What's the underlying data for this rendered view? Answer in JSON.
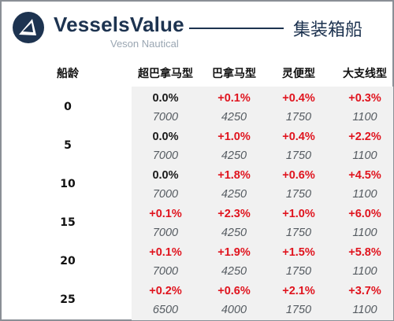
{
  "header": {
    "brand": "VesselsValue",
    "brand_sub": "Veson Nautical",
    "title": "集装箱船"
  },
  "table": {
    "age_header": "船龄",
    "columns": [
      "超巴拿马型",
      "巴拿马型",
      "灵便型",
      "大支线型"
    ],
    "rows": [
      {
        "age": "0",
        "changes": [
          "0.0%",
          "+0.1%",
          "+0.4%",
          "+0.3%"
        ],
        "values": [
          "7000",
          "4250",
          "1750",
          "1100"
        ]
      },
      {
        "age": "5",
        "changes": [
          "0.0%",
          "+1.0%",
          "+0.4%",
          "+2.2%"
        ],
        "values": [
          "7000",
          "4250",
          "1750",
          "1100"
        ]
      },
      {
        "age": "10",
        "changes": [
          "0.0%",
          "+1.8%",
          "+0.6%",
          "+4.5%"
        ],
        "values": [
          "7000",
          "4250",
          "1750",
          "1100"
        ]
      },
      {
        "age": "15",
        "changes": [
          "+0.1%",
          "+2.3%",
          "+1.0%",
          "+6.0%"
        ],
        "values": [
          "7000",
          "4250",
          "1750",
          "1100"
        ]
      },
      {
        "age": "20",
        "changes": [
          "+0.1%",
          "+1.9%",
          "+1.5%",
          "+5.8%"
        ],
        "values": [
          "7000",
          "4250",
          "1750",
          "1100"
        ]
      },
      {
        "age": "25",
        "changes": [
          "+0.2%",
          "+0.6%",
          "+2.1%",
          "+3.7%"
        ],
        "values": [
          "6500",
          "4000",
          "1750",
          "1100"
        ]
      }
    ]
  },
  "colors": {
    "brand": "#1d3350",
    "positive": "#e0141e",
    "neutral": "#1a1a1a",
    "value": "#555b61",
    "shade": "#f1f1f1"
  },
  "icons": {
    "logo": "vesselsvalue-logo-icon"
  }
}
